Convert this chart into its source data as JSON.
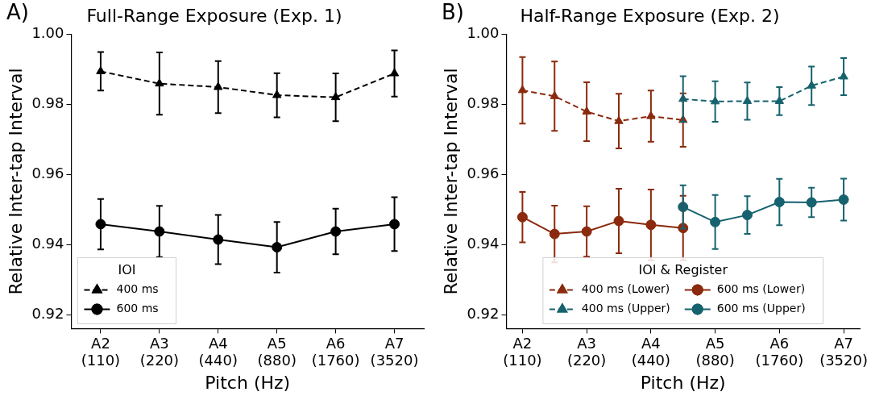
{
  "chart_data": [
    {
      "type": "line",
      "title": "Full-Range Exposure (Exp. 1)",
      "xlabel": "Pitch (Hz)",
      "ylabel": "Relative Inter-tap Interval",
      "legend_title": "IOI",
      "annotations": [
        "A)"
      ],
      "categories": [
        "A2\n(110)",
        "A3\n(220)",
        "A4\n(440)",
        "A5\n(880)",
        "A6\n(1760)",
        "A7\n(3520)"
      ],
      "series": [
        {
          "name": "400 ms",
          "color": "#000000",
          "marker": "triangle",
          "line_style": "dashed",
          "values": [
            0.9894,
            0.9859,
            0.9849,
            0.9826,
            0.982,
            0.9888
          ],
          "errors": [
            0.0055,
            0.0089,
            0.0074,
            0.0063,
            0.0068,
            0.0066
          ]
        },
        {
          "name": "600 ms",
          "color": "#000000",
          "marker": "circle",
          "line_style": "solid",
          "values": [
            0.9458,
            0.9437,
            0.9414,
            0.9392,
            0.9437,
            0.9458
          ],
          "errors": [
            0.0072,
            0.0073,
            0.007,
            0.0072,
            0.0065,
            0.0077
          ]
        }
      ],
      "ylim": [
        0.916,
        1.0
      ],
      "yticks": [
        0.92,
        0.94,
        0.96,
        0.98,
        {
          "value": 1.0,
          "label": "1.00"
        }
      ],
      "grid": false,
      "legend": "bottom left"
    },
    {
      "type": "line",
      "title": "Half-Range Exposure (Exp. 2)",
      "xlabel": "Pitch (Hz)",
      "ylabel": "Relative Inter-tap Interval",
      "legend_title": "IOI & Register",
      "annotations": [
        "B)"
      ],
      "series": [
        {
          "name": "400 ms (Lower)",
          "color": "#8b2a0e",
          "marker": "triangle",
          "line_style": "dashed",
          "values": [
            0.984,
            0.9823,
            0.9779,
            0.9752,
            0.9766,
            0.9755,
            null,
            null,
            null,
            null,
            null
          ],
          "errors": [
            0.0095,
            0.0099,
            0.0084,
            0.0078,
            0.0073,
            0.0076,
            null,
            null,
            null,
            null,
            null
          ]
        },
        {
          "name": "400 ms (Upper)",
          "color": "#16626e",
          "marker": "triangle",
          "line_style": "dashed",
          "values": [
            null,
            null,
            null,
            null,
            null,
            0.9815,
            0.9808,
            0.9809,
            0.9809,
            0.9853,
            0.9879
          ],
          "errors": [
            null,
            null,
            null,
            null,
            null,
            0.0065,
            0.0058,
            0.0053,
            0.004,
            0.0055,
            0.0053
          ]
        },
        {
          "name": "600 ms (Lower)",
          "color": "#8b2a0e",
          "marker": "circle",
          "line_style": "solid",
          "values": [
            0.9478,
            0.943,
            0.9437,
            0.9467,
            0.9456,
            0.9447,
            null,
            null,
            null,
            null,
            null
          ],
          "errors": [
            0.0072,
            0.0081,
            0.0072,
            0.0092,
            0.0101,
            0.0092,
            null,
            null,
            null,
            null,
            null
          ]
        },
        {
          "name": "600 ms (Upper)",
          "color": "#16626e",
          "marker": "circle",
          "line_style": "solid",
          "values": [
            null,
            null,
            null,
            null,
            null,
            0.9507,
            0.9464,
            0.9484,
            0.9521,
            0.952,
            0.9528
          ],
          "errors": [
            null,
            null,
            null,
            null,
            null,
            0.0062,
            0.0077,
            0.0054,
            0.0066,
            0.0042,
            0.006
          ]
        }
      ],
      "categories": [
        "A2\n(110)",
        null,
        "A3\n(220)",
        null,
        "A4\n(440)",
        null,
        "A5\n(880)",
        null,
        "A6\n(1760)",
        null,
        "A7\n(3520)"
      ],
      "ylim": [
        0.916,
        1.0
      ],
      "yticks": [
        0.92,
        0.94,
        0.96,
        0.98,
        {
          "value": 1.0,
          "label": "1.00"
        }
      ],
      "grid": false,
      "legend": "bottom"
    }
  ]
}
